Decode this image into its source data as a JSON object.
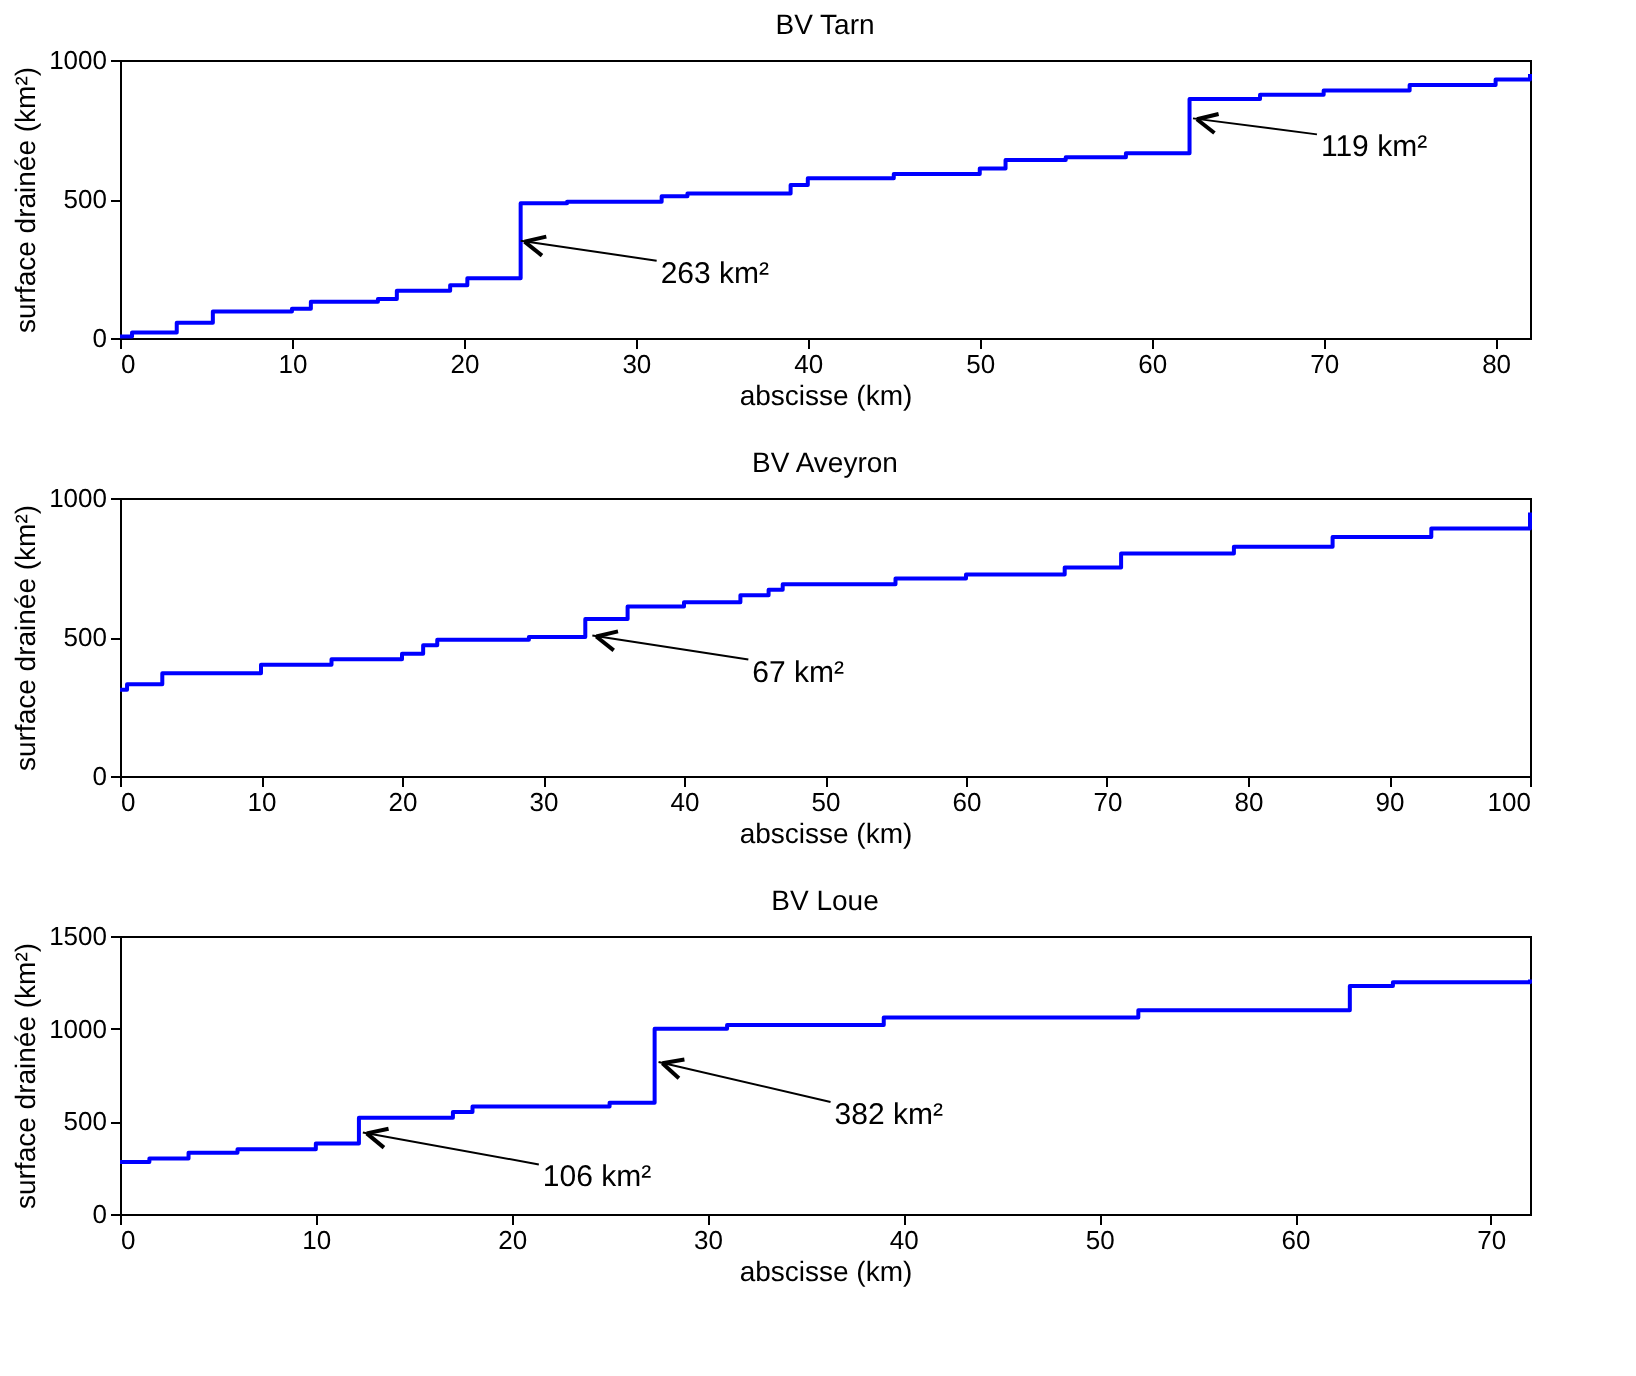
{
  "chart_data": [
    {
      "type": "step",
      "title": "BV Tarn",
      "xlabel": "abscisse (km)",
      "ylabel": "surface drainée (km²)",
      "x": [
        0,
        0.7,
        3.3,
        5.4,
        10,
        11.1,
        15,
        16.1,
        19.2,
        20.2,
        23.3,
        26,
        31.5,
        33,
        39,
        40,
        45,
        50,
        51.5,
        55,
        58.5,
        62.2,
        66.3,
        70,
        75,
        80,
        82
      ],
      "values": [
        5,
        20,
        55,
        95,
        105,
        130,
        140,
        170,
        190,
        215,
        485,
        490,
        510,
        520,
        550,
        575,
        590,
        610,
        640,
        650,
        665,
        860,
        875,
        890,
        910,
        930,
        950
      ],
      "color": "#0000ff",
      "xlim": [
        0,
        82
      ],
      "ylim": [
        0,
        1000
      ],
      "xticks": [
        0,
        10,
        20,
        30,
        40,
        50,
        60,
        70,
        80
      ],
      "yticks": [
        0,
        500,
        1000
      ],
      "annotations": [
        {
          "text": "263 km²",
          "x": 23.3,
          "y": 350
        },
        {
          "text": "119 km²",
          "x": 62.4,
          "y": 790
        }
      ]
    },
    {
      "type": "step",
      "title": "BV Aveyron",
      "xlabel": "abscisse (km)",
      "ylabel": "surface drainée (km²)",
      "x": [
        0,
        0.5,
        3,
        10,
        15,
        20,
        21.5,
        22.5,
        29,
        33,
        36,
        40,
        44,
        46,
        47,
        55,
        60,
        67,
        71,
        79,
        86,
        93,
        100
      ],
      "values": [
        310,
        330,
        370,
        400,
        420,
        440,
        470,
        490,
        500,
        565,
        610,
        625,
        650,
        670,
        690,
        710,
        725,
        750,
        800,
        825,
        860,
        890,
        948
      ],
      "color": "#0000ff",
      "xlim": [
        0,
        100
      ],
      "ylim": [
        0,
        1000
      ],
      "xticks": [
        0,
        10,
        20,
        30,
        40,
        50,
        60,
        70,
        80,
        90,
        100
      ],
      "yticks": [
        0,
        500,
        1000
      ],
      "annotations": [
        {
          "text": "67 km²",
          "x": 33.5,
          "y": 505
        }
      ]
    },
    {
      "type": "step",
      "title": "BV Loue",
      "xlabel": "abscisse (km)",
      "ylabel": "surface drainée (km²)",
      "x": [
        0,
        1.5,
        3.5,
        6,
        10,
        12.2,
        17,
        18,
        25,
        27.3,
        31,
        39,
        52,
        62.8,
        65,
        72
      ],
      "values": [
        280,
        300,
        330,
        350,
        380,
        520,
        550,
        580,
        600,
        1000,
        1020,
        1060,
        1100,
        1230,
        1250,
        1265
      ],
      "color": "#0000ff",
      "xlim": [
        0,
        72
      ],
      "ylim": [
        0,
        1500
      ],
      "xticks": [
        0,
        10,
        20,
        30,
        40,
        50,
        60,
        70
      ],
      "yticks": [
        0,
        500,
        1000,
        1500
      ],
      "annotations": [
        {
          "text": "106 km²",
          "x": 12.4,
          "y": 440
        },
        {
          "text": "382 km²",
          "x": 27.5,
          "y": 820
        }
      ]
    }
  ]
}
